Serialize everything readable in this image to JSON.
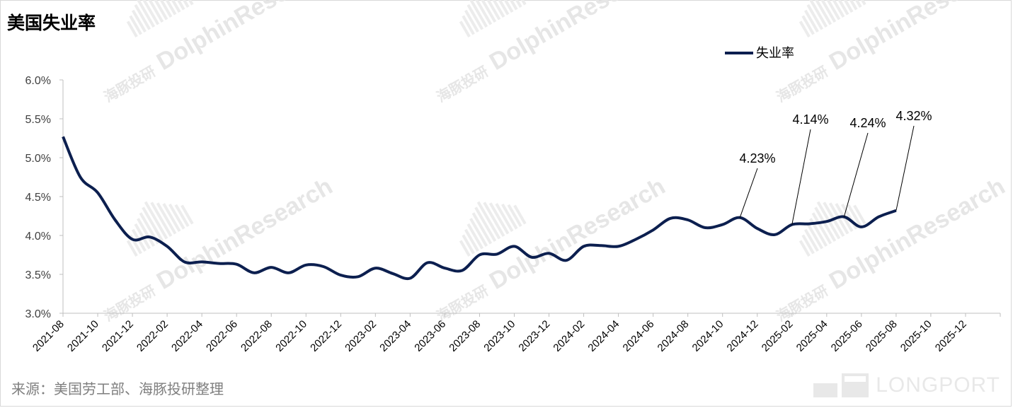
{
  "title": "美国失业率",
  "source": "来源：美国劳工部、海豚投研整理",
  "brand": {
    "name": "LONGPORT"
  },
  "watermark": {
    "cn": "海豚投研",
    "en": "DolphinResearch"
  },
  "colors": {
    "line": "#0c1f4f",
    "axis": "#bfbfbf",
    "text": "#000000"
  },
  "chart_data": {
    "type": "line",
    "ylim": [
      3.0,
      6.0
    ],
    "y_ticks": [
      "3.0%",
      "3.5%",
      "4.0%",
      "4.5%",
      "5.0%",
      "5.5%",
      "6.0%"
    ],
    "x_ticks": [
      "2021-08",
      "2021-10",
      "2021-12",
      "2022-02",
      "2022-04",
      "2022-06",
      "2022-08",
      "2022-10",
      "2022-12",
      "2023-02",
      "2023-04",
      "2023-06",
      "2023-08",
      "2023-10",
      "2023-12",
      "2024-02",
      "2024-04",
      "2024-06",
      "2024-08",
      "2024-10",
      "2024-12",
      "2025-02",
      "2025-04",
      "2025-06",
      "2025-08",
      "2025-10",
      "2025-12"
    ],
    "legend": "top-center",
    "grid": false,
    "series": [
      {
        "name": "失业率",
        "x": [
          "2021-08",
          "2021-09",
          "2021-10",
          "2021-11",
          "2021-12",
          "2022-01",
          "2022-02",
          "2022-03",
          "2022-04",
          "2022-05",
          "2022-06",
          "2022-07",
          "2022-08",
          "2022-09",
          "2022-10",
          "2022-11",
          "2022-12",
          "2023-01",
          "2023-02",
          "2023-03",
          "2023-04",
          "2023-05",
          "2023-06",
          "2023-07",
          "2023-08",
          "2023-09",
          "2023-10",
          "2023-11",
          "2023-12",
          "2024-01",
          "2024-02",
          "2024-03",
          "2024-04",
          "2024-05",
          "2024-06",
          "2024-07",
          "2024-08",
          "2024-09",
          "2024-10",
          "2024-11",
          "2024-12",
          "2025-01",
          "2025-02",
          "2025-03",
          "2025-04",
          "2025-05",
          "2025-06",
          "2025-07",
          "2025-08"
        ],
        "values": [
          5.27,
          4.75,
          4.55,
          4.2,
          3.95,
          3.98,
          3.86,
          3.66,
          3.66,
          3.64,
          3.63,
          3.52,
          3.59,
          3.52,
          3.62,
          3.6,
          3.49,
          3.47,
          3.58,
          3.51,
          3.45,
          3.65,
          3.58,
          3.55,
          3.75,
          3.76,
          3.86,
          3.72,
          3.77,
          3.68,
          3.86,
          3.87,
          3.86,
          3.95,
          4.07,
          4.22,
          4.2,
          4.1,
          4.14,
          4.23,
          4.09,
          4.01,
          4.14,
          4.15,
          4.18,
          4.24,
          4.11,
          4.24,
          4.32
        ]
      }
    ],
    "annotations": [
      {
        "x": "2024-11",
        "y": 4.23,
        "label": "4.23%"
      },
      {
        "x": "2025-02",
        "y": 4.14,
        "label": "4.14%"
      },
      {
        "x": "2025-05",
        "y": 4.24,
        "label": "4.24%"
      },
      {
        "x": "2025-08",
        "y": 4.32,
        "label": "4.32%"
      }
    ]
  }
}
